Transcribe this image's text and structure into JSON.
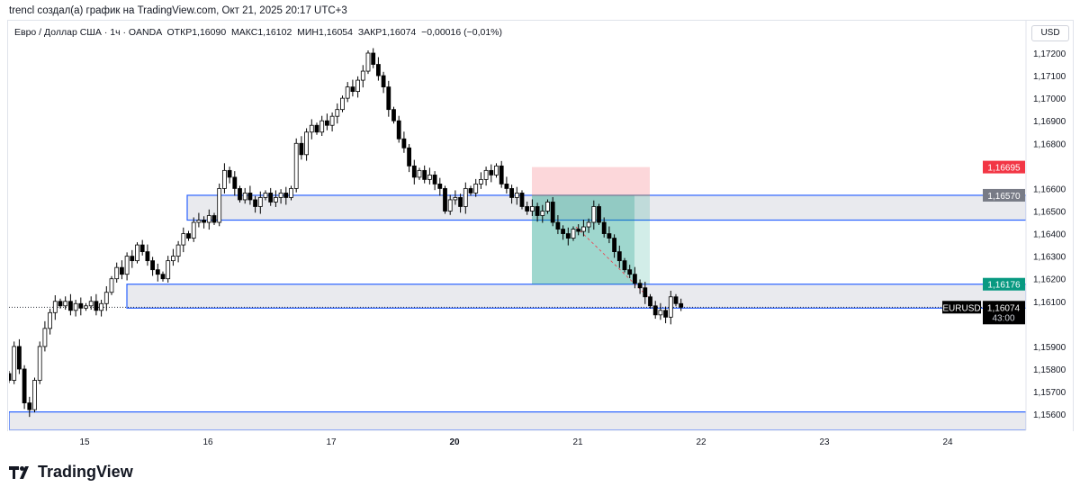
{
  "header": {
    "credit": "trencl создал(а) график на TradingView.com, Окт 21, 2025 20:17 UTC+3"
  },
  "legend": {
    "symbol_desc": "Евро / Доллар США · 1ч · OANDA",
    "open": "ОТКР1,16090",
    "high": "МАКС1,16102",
    "low": "МИН1,16054",
    "close": "ЗАКР1,16074",
    "change": "−0,00016 (−0,01%)"
  },
  "currency_button": "USD",
  "logo_text": "TradingView",
  "colors": {
    "up": "#ffffff",
    "down": "#000000",
    "zone_line": "#2962ff",
    "zone_fill": "#e9eaee",
    "stop": "#f23645",
    "target": "#089981"
  },
  "price_labels": {
    "stop": "1,16695",
    "entry": "1,16570",
    "target": "1,16176",
    "symbol": "EURUSD",
    "last": "1,16074",
    "countdown": "43:00"
  },
  "chart_data": {
    "type": "candlestick",
    "symbol": "EURUSD",
    "timeframe": "1h",
    "ylim": [
      1.1553,
      1.1734
    ],
    "y_ticks": [
      "1,17200",
      "1,17100",
      "1,17000",
      "1,16900",
      "1,16800",
      "1,16600",
      "1,16500",
      "1,16400",
      "1,16300",
      "1,16200",
      "1,16100",
      "1,15900",
      "1,15800",
      "1,15700",
      "1,15600"
    ],
    "y_tick_values": [
      1.172,
      1.171,
      1.17,
      1.169,
      1.168,
      1.166,
      1.165,
      1.164,
      1.163,
      1.162,
      1.161,
      1.159,
      1.158,
      1.157,
      1.156
    ],
    "x_ticks": [
      {
        "label": "15",
        "bold": false
      },
      {
        "label": "16",
        "bold": false
      },
      {
        "label": "17",
        "bold": false
      },
      {
        "label": "20",
        "bold": true
      },
      {
        "label": "21",
        "bold": false
      },
      {
        "label": "22",
        "bold": false
      },
      {
        "label": "23",
        "bold": false
      },
      {
        "label": "24",
        "bold": false
      }
    ],
    "closes": [
      1.1575,
      1.159,
      1.158,
      1.1565,
      1.1562,
      1.1575,
      1.159,
      1.1598,
      1.1605,
      1.161,
      1.1608,
      1.161,
      1.1606,
      1.1609,
      1.1607,
      1.1608,
      1.161,
      1.1606,
      1.1609,
      1.1614,
      1.162,
      1.1625,
      1.1622,
      1.163,
      1.1628,
      1.1635,
      1.1632,
      1.1628,
      1.1624,
      1.1622,
      1.162,
      1.1628,
      1.163,
      1.1635,
      1.164,
      1.1638,
      1.1645,
      1.1646,
      1.1645,
      1.1648,
      1.1645,
      1.166,
      1.1668,
      1.1665,
      1.166,
      1.1655,
      1.1658,
      1.1655,
      1.1652,
      1.1656,
      1.1658,
      1.1654,
      1.1656,
      1.1658,
      1.1656,
      1.166,
      1.168,
      1.1675,
      1.1685,
      1.1688,
      1.1685,
      1.169,
      1.1688,
      1.1692,
      1.1695,
      1.17,
      1.1705,
      1.1703,
      1.1708,
      1.1712,
      1.172,
      1.1715,
      1.171,
      1.1705,
      1.1695,
      1.169,
      1.1682,
      1.1678,
      1.167,
      1.1665,
      1.1668,
      1.1664,
      1.1666,
      1.1662,
      1.166,
      1.165,
      1.1655,
      1.1656,
      1.1652,
      1.166,
      1.1658,
      1.1662,
      1.1664,
      1.1668,
      1.1666,
      1.167,
      1.1662,
      1.166,
      1.1656,
      1.1658,
      1.1652,
      1.165,
      1.1652,
      1.1648,
      1.165,
      1.1654,
      1.1645,
      1.1642,
      1.164,
      1.1638,
      1.1642,
      1.1641,
      1.1643,
      1.1645,
      1.1652,
      1.1645,
      1.164,
      1.1638,
      1.1632,
      1.1628,
      1.1624,
      1.1622,
      1.1618,
      1.1616,
      1.1612,
      1.1608,
      1.1604,
      1.1606,
      1.1603,
      1.1612,
      1.1609,
      1.16074
    ],
    "zones": [
      {
        "top": 1.1657,
        "bottom": 1.1646
      },
      {
        "top": 1.16176,
        "bottom": 1.1607
      },
      {
        "top": 1.1561,
        "bottom": 1.1553
      }
    ],
    "position": {
      "side": "short",
      "entry": 1.1657,
      "stop": 1.16695,
      "target": 1.16176
    }
  }
}
